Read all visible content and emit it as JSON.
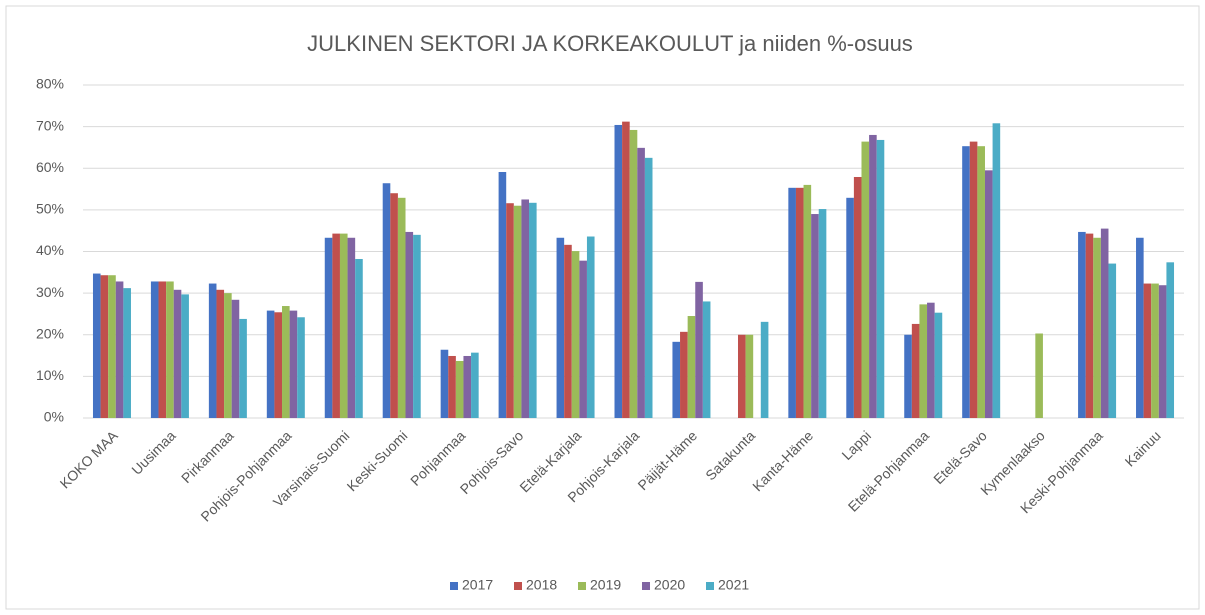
{
  "chart_data": {
    "type": "bar",
    "title": "JULKINEN SEKTORI JA KORKEAKOULUT ja niiden %-osuus",
    "categories": [
      "KOKO MAA",
      "Uusimaa",
      "Pirkanmaa",
      "Pohjois-Pohjanmaa",
      "Varsinais-Suomi",
      "Keski-Suomi",
      "Pohjanmaa",
      "Pohjois-Savo",
      "Etelä-Karjala",
      "Pohjois-Karjala",
      "Päijät-Häme",
      "Satakunta",
      "Kanta-Häme",
      "Lappi",
      "Etelä-Pohjanmaa",
      "Etelä-Savo",
      "Kymenlaakso",
      "Keski-Pohjanmaa",
      "Kainuu"
    ],
    "series": [
      {
        "name": "2017",
        "color": "#4472c4",
        "values": [
          34.7,
          32.8,
          32.3,
          25.8,
          43.3,
          56.4,
          16.4,
          59.1,
          43.3,
          70.4,
          18.3,
          null,
          55.3,
          52.9,
          20,
          65.3,
          null,
          44.7,
          43.3
        ]
      },
      {
        "name": "2018",
        "color": "#c0504d",
        "values": [
          34.3,
          32.8,
          30.8,
          25.4,
          44.3,
          54,
          14.9,
          51.6,
          41.6,
          71.2,
          20.7,
          20,
          55.3,
          57.9,
          22.6,
          66.4,
          null,
          44.3,
          32.3
        ]
      },
      {
        "name": "2019",
        "color": "#9bbb59",
        "values": [
          34.3,
          32.8,
          30,
          26.9,
          44.3,
          52.9,
          13.7,
          51,
          40.1,
          69.2,
          24.5,
          20,
          56,
          66.4,
          27.3,
          65.3,
          20.3,
          43.3,
          32.3
        ]
      },
      {
        "name": "2020",
        "color": "#8064a2",
        "values": [
          32.8,
          30.8,
          28.4,
          25.8,
          43.3,
          44.7,
          14.9,
          52.5,
          37.8,
          64.9,
          32.7,
          null,
          49,
          68,
          27.7,
          59.5,
          null,
          45.5,
          31.9
        ]
      },
      {
        "name": "2021",
        "color": "#4bacc6",
        "values": [
          31.2,
          29.7,
          23.8,
          24.2,
          38.2,
          44,
          15.7,
          51.7,
          43.6,
          62.5,
          28,
          23.1,
          50.2,
          66.8,
          25.3,
          70.8,
          null,
          37.1,
          37.4
        ]
      }
    ],
    "ylim": [
      0,
      80
    ],
    "yticks": [
      {
        "value": 0,
        "label": "0%"
      },
      {
        "value": 10,
        "label": "10%"
      },
      {
        "value": 20,
        "label": "20%"
      },
      {
        "value": 30,
        "label": "30%"
      },
      {
        "value": 40,
        "label": "40%"
      },
      {
        "value": 50,
        "label": "50%"
      },
      {
        "value": 60,
        "label": "60%"
      },
      {
        "value": 70,
        "label": "70%"
      },
      {
        "value": 80,
        "label": "80%"
      }
    ],
    "grid": true,
    "legend": "bottom"
  }
}
